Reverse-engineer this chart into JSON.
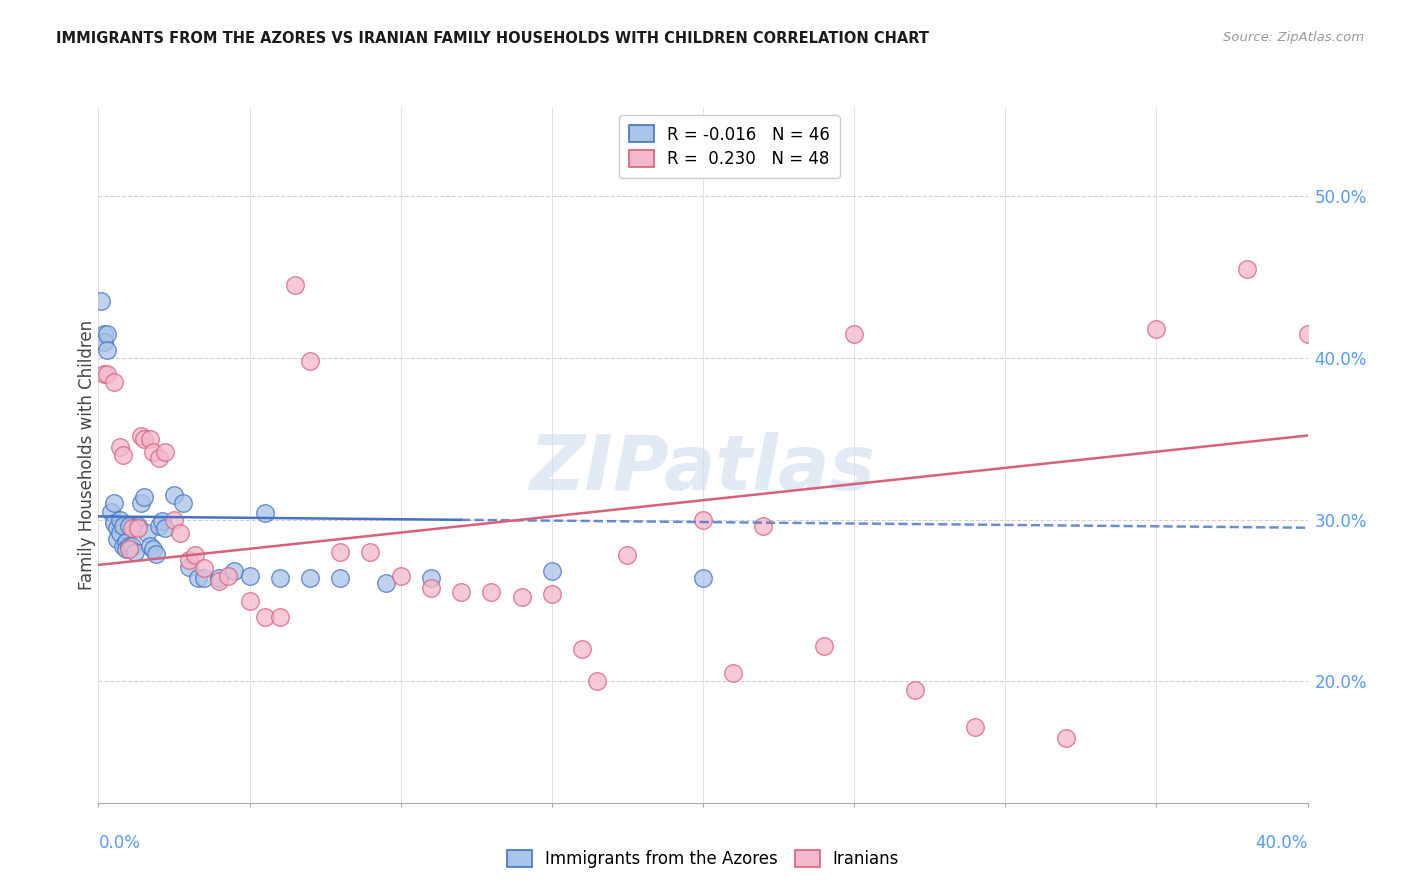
{
  "title": "IMMIGRANTS FROM THE AZORES VS IRANIAN FAMILY HOUSEHOLDS WITH CHILDREN CORRELATION CHART",
  "source": "Source: ZipAtlas.com",
  "ylabel": "Family Households with Children",
  "azores_color": "#a8c4e8",
  "iranians_color": "#f4b8cc",
  "azores_line_color": "#4472c4",
  "iranians_line_color": "#d9607a",
  "watermark": "ZIPatlas",
  "xlim": [
    0.0,
    0.4
  ],
  "ylim": [
    0.125,
    0.555
  ],
  "yticks": [
    0.2,
    0.3,
    0.4,
    0.5
  ],
  "ytick_labels": [
    "20.0%",
    "30.0%",
    "40.0%",
    "50.0%"
  ],
  "legend1_text1": "R = -0.016   N = 46",
  "legend1_text2": "R =  0.230   N = 48",
  "legend2_text1": "Immigrants from the Azores",
  "legend2_text2": "Iranians",
  "azores_R": -0.016,
  "azores_N": 46,
  "iranians_R": 0.23,
  "iranians_N": 48,
  "azores_x": [
    0.001,
    0.002,
    0.002,
    0.003,
    0.003,
    0.004,
    0.005,
    0.005,
    0.006,
    0.006,
    0.007,
    0.007,
    0.008,
    0.008,
    0.009,
    0.009,
    0.01,
    0.01,
    0.011,
    0.012,
    0.013,
    0.014,
    0.015,
    0.016,
    0.017,
    0.018,
    0.019,
    0.02,
    0.021,
    0.022,
    0.025,
    0.028,
    0.03,
    0.033,
    0.035,
    0.04,
    0.045,
    0.05,
    0.055,
    0.06,
    0.07,
    0.08,
    0.095,
    0.11,
    0.15,
    0.2
  ],
  "azores_y": [
    0.435,
    0.415,
    0.41,
    0.415,
    0.405,
    0.305,
    0.31,
    0.298,
    0.295,
    0.288,
    0.3,
    0.292,
    0.296,
    0.284,
    0.286,
    0.282,
    0.296,
    0.284,
    0.284,
    0.28,
    0.296,
    0.31,
    0.314,
    0.292,
    0.284,
    0.282,
    0.279,
    0.296,
    0.299,
    0.295,
    0.315,
    0.31,
    0.271,
    0.264,
    0.264,
    0.264,
    0.268,
    0.265,
    0.304,
    0.264,
    0.264,
    0.264,
    0.261,
    0.264,
    0.268,
    0.264
  ],
  "iranians_x": [
    0.002,
    0.003,
    0.005,
    0.007,
    0.008,
    0.01,
    0.011,
    0.013,
    0.014,
    0.015,
    0.017,
    0.018,
    0.02,
    0.022,
    0.025,
    0.027,
    0.03,
    0.032,
    0.035,
    0.04,
    0.043,
    0.05,
    0.055,
    0.06,
    0.065,
    0.07,
    0.08,
    0.09,
    0.1,
    0.11,
    0.12,
    0.13,
    0.14,
    0.15,
    0.16,
    0.175,
    0.2,
    0.22,
    0.24,
    0.25,
    0.27,
    0.29,
    0.32,
    0.35,
    0.38,
    0.4,
    0.165,
    0.21
  ],
  "iranians_y": [
    0.39,
    0.39,
    0.385,
    0.345,
    0.34,
    0.282,
    0.295,
    0.295,
    0.352,
    0.35,
    0.35,
    0.342,
    0.338,
    0.342,
    0.3,
    0.292,
    0.275,
    0.278,
    0.27,
    0.262,
    0.265,
    0.25,
    0.24,
    0.24,
    0.445,
    0.398,
    0.28,
    0.28,
    0.265,
    0.258,
    0.255,
    0.255,
    0.252,
    0.254,
    0.22,
    0.278,
    0.3,
    0.296,
    0.222,
    0.415,
    0.195,
    0.172,
    0.165,
    0.418,
    0.455,
    0.415,
    0.2,
    0.205
  ],
  "azores_trend_x": [
    0.0,
    0.4
  ],
  "azores_trend_y": [
    0.302,
    0.295
  ],
  "iranians_trend_x": [
    0.0,
    0.4
  ],
  "iranians_trend_y": [
    0.272,
    0.352
  ]
}
